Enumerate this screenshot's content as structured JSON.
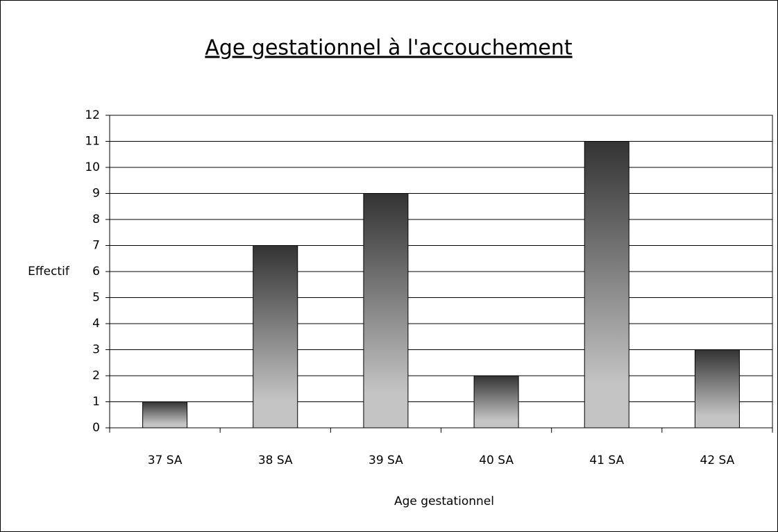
{
  "chart_data": {
    "type": "bar",
    "title": "Age gestationnel à l'accouchement",
    "x_label": "Age gestationnel",
    "y_label": "Effectif",
    "categories": [
      "37 SA",
      "38 SA",
      "39 SA",
      "40 SA",
      "41 SA",
      "42 SA"
    ],
    "values": [
      1,
      7,
      9,
      2,
      11,
      3
    ],
    "gradient": [
      "#333333",
      "#c4c4c4"
    ],
    "ylim": [
      0,
      12
    ],
    "yticks": [
      0,
      1,
      2,
      3,
      4,
      5,
      6,
      7,
      8,
      9,
      10,
      11,
      12
    ],
    "grid": true
  }
}
